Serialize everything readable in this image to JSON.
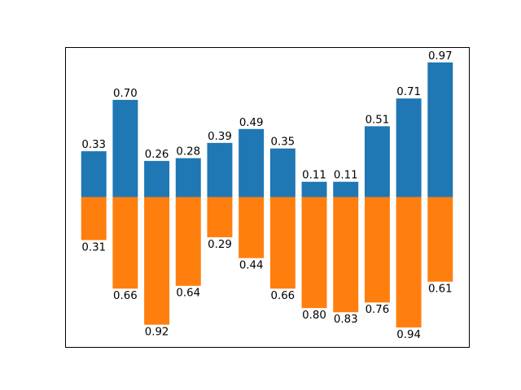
{
  "chart_data": {
    "type": "bar",
    "stacked": false,
    "orientation": "vertical",
    "title": "",
    "xlabel": "",
    "ylabel": "",
    "xticks_visible": false,
    "yticks_visible": false,
    "grid": false,
    "legend": "none",
    "ylim": [
      -1.08,
      1.08
    ],
    "categories": [
      0,
      1,
      2,
      3,
      4,
      5,
      6,
      7,
      8,
      9,
      10,
      11
    ],
    "series": [
      {
        "color": "#1f77b4",
        "values": [
          0.33,
          0.7,
          0.26,
          0.28,
          0.39,
          0.49,
          0.35,
          0.11,
          0.11,
          0.51,
          0.71,
          0.97
        ],
        "labels": [
          "0.33",
          "0.70",
          "0.26",
          "0.28",
          "0.39",
          "0.49",
          "0.35",
          "0.11",
          "0.11",
          "0.51",
          "0.71",
          "0.97"
        ]
      },
      {
        "color": "#ff7f0e",
        "values": [
          -0.31,
          -0.66,
          -0.92,
          -0.64,
          -0.29,
          -0.44,
          -0.66,
          -0.8,
          -0.83,
          -0.76,
          -0.94,
          -0.61
        ],
        "labels": [
          "0.31",
          "0.66",
          "0.92",
          "0.64",
          "0.29",
          "0.44",
          "0.66",
          "0.80",
          "0.83",
          "0.76",
          "0.94",
          "0.61"
        ]
      }
    ]
  }
}
